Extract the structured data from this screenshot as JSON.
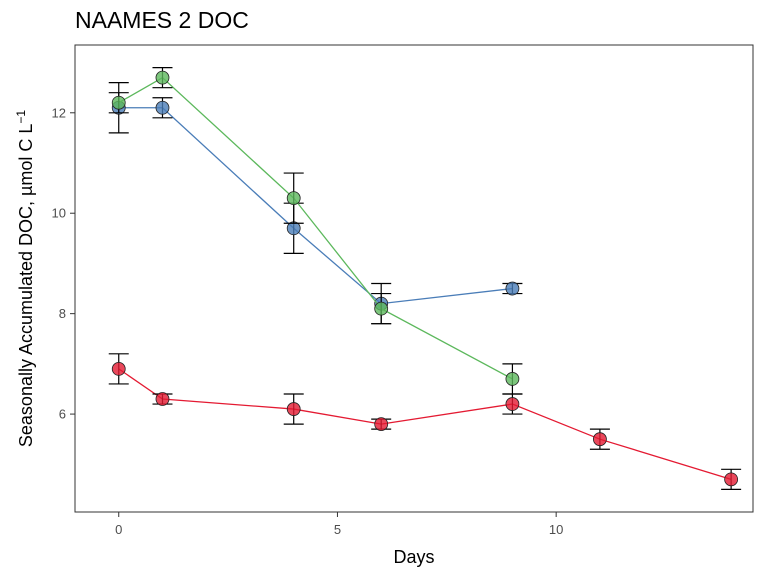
{
  "chart_data": {
    "type": "line",
    "title": "NAAMES 2 DOC",
    "xlabel": "Days",
    "ylabel": "Seasonally Accumulated DOC, µmol C L",
    "ylabel_superscript": "−1",
    "xlim": [
      -1,
      14.5
    ],
    "ylim": [
      4.05,
      13.35
    ],
    "x_ticks": [
      0,
      5,
      10
    ],
    "y_ticks": [
      6,
      8,
      10,
      12
    ],
    "grid": false,
    "legend": "none",
    "series": [
      {
        "color": "#4a7db8",
        "points": [
          {
            "x": 0,
            "y": 12.1,
            "err": 0.5
          },
          {
            "x": 1,
            "y": 12.1,
            "err": 0.2
          },
          {
            "x": 4,
            "y": 9.7,
            "err": 0.5
          },
          {
            "x": 6,
            "y": 8.2,
            "err": 0.4
          },
          {
            "x": 9,
            "y": 8.5,
            "err": 0.1
          }
        ]
      },
      {
        "color": "#5cb85c",
        "points": [
          {
            "x": 0,
            "y": 12.2,
            "err": 0.2
          },
          {
            "x": 1,
            "y": 12.7,
            "err": 0.2
          },
          {
            "x": 4,
            "y": 10.3,
            "err": 0.5
          },
          {
            "x": 6,
            "y": 8.1,
            "err": 0.3
          },
          {
            "x": 9,
            "y": 6.7,
            "err": 0.3
          }
        ]
      },
      {
        "color": "#e41a32",
        "points": [
          {
            "x": 0,
            "y": 6.9,
            "err": 0.3
          },
          {
            "x": 1,
            "y": 6.3,
            "err": 0.1
          },
          {
            "x": 4,
            "y": 6.1,
            "err": 0.3
          },
          {
            "x": 6,
            "y": 5.8,
            "err": 0.1
          },
          {
            "x": 9,
            "y": 6.2,
            "err": 0.2
          },
          {
            "x": 11,
            "y": 5.5,
            "err": 0.2
          },
          {
            "x": 14,
            "y": 4.7,
            "err": 0.2
          }
        ]
      }
    ]
  }
}
